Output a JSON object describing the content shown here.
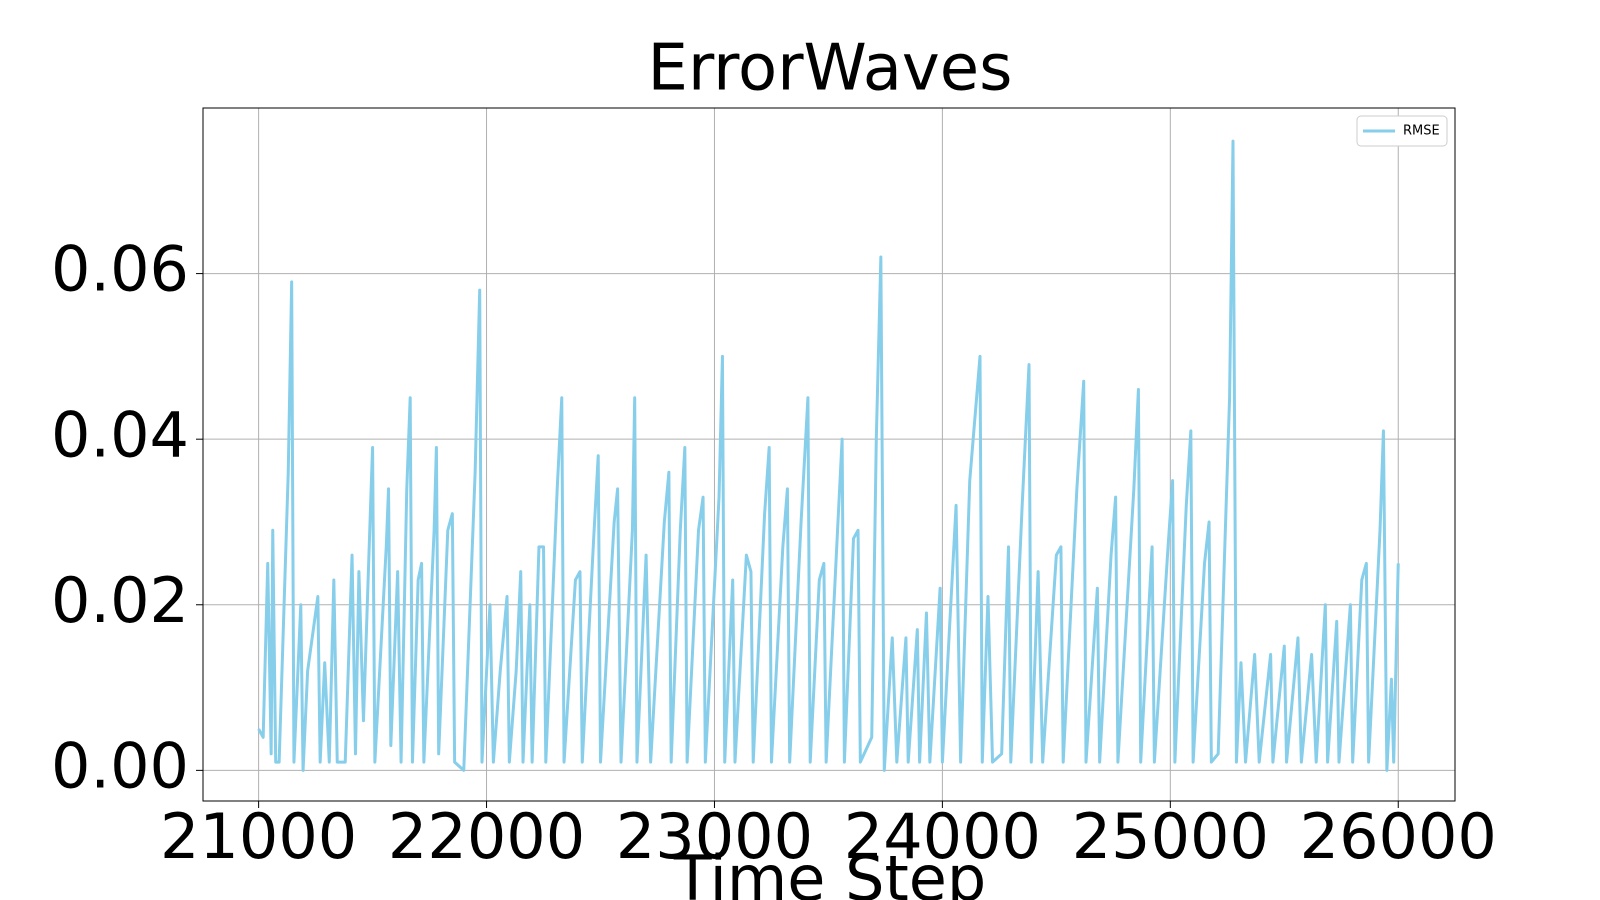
{
  "chart_data": {
    "type": "line",
    "title": "ErrorWaves",
    "x_label": "Time Step",
    "x": [
      21000,
      21020,
      21040,
      21055,
      21062,
      21075,
      21090,
      21130,
      21145,
      21155,
      21185,
      21195,
      21215,
      21260,
      21270,
      21290,
      21310,
      21330,
      21345,
      21380,
      21410,
      21425,
      21440,
      21460,
      21490,
      21500,
      21510,
      21560,
      21570,
      21580,
      21610,
      21625,
      21650,
      21665,
      21675,
      21700,
      21715,
      21725,
      21770,
      21780,
      21790,
      21830,
      21850,
      21860,
      21900,
      21950,
      21970,
      21980,
      22015,
      22030,
      22060,
      22090,
      22100,
      22130,
      22150,
      22160,
      22190,
      22200,
      22230,
      22250,
      22260,
      22310,
      22330,
      22340,
      22390,
      22410,
      22420,
      22470,
      22490,
      22500,
      22560,
      22575,
      22590,
      22640,
      22650,
      22660,
      22700,
      22720,
      22780,
      22800,
      22810,
      22850,
      22870,
      22880,
      22930,
      22950,
      22960,
      23020,
      23035,
      23045,
      23080,
      23090,
      23140,
      23160,
      23170,
      23220,
      23240,
      23250,
      23300,
      23320,
      23330,
      23380,
      23410,
      23420,
      23460,
      23480,
      23490,
      23540,
      23560,
      23570,
      23610,
      23630,
      23640,
      23690,
      23710,
      23730,
      23745,
      23780,
      23800,
      23840,
      23850,
      23890,
      23900,
      23930,
      23945,
      23990,
      24000,
      24060,
      24080,
      24120,
      24165,
      24175,
      24200,
      24220,
      24260,
      24290,
      24300,
      24350,
      24380,
      24390,
      24420,
      24440,
      24500,
      24520,
      24530,
      24590,
      24620,
      24630,
      24680,
      24690,
      24740,
      24760,
      24770,
      24840,
      24860,
      24870,
      24920,
      24930,
      24990,
      25010,
      25020,
      25070,
      25090,
      25100,
      25150,
      25170,
      25180,
      25210,
      25260,
      25275,
      25290,
      25310,
      25330,
      25370,
      25390,
      25440,
      25450,
      25500,
      25510,
      25560,
      25575,
      25620,
      25640,
      25680,
      25690,
      25730,
      25740,
      25790,
      25800,
      25840,
      25860,
      25870,
      25920,
      25935,
      25950,
      25970,
      25980,
      26000
    ],
    "series": [
      {
        "name": "RMSE",
        "color": "#87ceeb",
        "values": [
          0.005,
          0.004,
          0.025,
          0.002,
          0.029,
          0.001,
          0.001,
          0.036,
          0.059,
          0.001,
          0.02,
          0.0,
          0.012,
          0.021,
          0.001,
          0.013,
          0.001,
          0.023,
          0.001,
          0.001,
          0.026,
          0.002,
          0.024,
          0.006,
          0.031,
          0.039,
          0.001,
          0.027,
          0.034,
          0.003,
          0.024,
          0.001,
          0.034,
          0.045,
          0.001,
          0.023,
          0.025,
          0.001,
          0.029,
          0.039,
          0.002,
          0.029,
          0.031,
          0.001,
          0.0,
          0.036,
          0.058,
          0.001,
          0.02,
          0.001,
          0.012,
          0.021,
          0.001,
          0.012,
          0.024,
          0.001,
          0.02,
          0.001,
          0.027,
          0.027,
          0.001,
          0.034,
          0.045,
          0.001,
          0.023,
          0.024,
          0.001,
          0.028,
          0.038,
          0.001,
          0.03,
          0.034,
          0.001,
          0.029,
          0.045,
          0.001,
          0.026,
          0.001,
          0.03,
          0.036,
          0.001,
          0.029,
          0.039,
          0.001,
          0.029,
          0.033,
          0.001,
          0.033,
          0.05,
          0.001,
          0.023,
          0.001,
          0.026,
          0.024,
          0.001,
          0.031,
          0.039,
          0.001,
          0.027,
          0.034,
          0.001,
          0.03,
          0.045,
          0.001,
          0.023,
          0.025,
          0.001,
          0.029,
          0.04,
          0.001,
          0.028,
          0.029,
          0.001,
          0.004,
          0.04,
          0.062,
          0.0,
          0.016,
          0.001,
          0.016,
          0.001,
          0.017,
          0.001,
          0.019,
          0.001,
          0.022,
          0.001,
          0.032,
          0.001,
          0.035,
          0.05,
          0.001,
          0.021,
          0.001,
          0.002,
          0.027,
          0.001,
          0.032,
          0.049,
          0.001,
          0.024,
          0.001,
          0.026,
          0.027,
          0.001,
          0.034,
          0.047,
          0.001,
          0.022,
          0.001,
          0.026,
          0.033,
          0.001,
          0.034,
          0.046,
          0.001,
          0.027,
          0.001,
          0.027,
          0.035,
          0.001,
          0.032,
          0.041,
          0.001,
          0.025,
          0.03,
          0.001,
          0.002,
          0.045,
          0.076,
          0.001,
          0.013,
          0.001,
          0.014,
          0.001,
          0.014,
          0.001,
          0.015,
          0.001,
          0.016,
          0.001,
          0.014,
          0.001,
          0.02,
          0.001,
          0.018,
          0.001,
          0.02,
          0.001,
          0.023,
          0.025,
          0.001,
          0.029,
          0.041,
          0.0,
          0.011,
          0.001,
          0.025
        ]
      }
    ],
    "xlim": [
      20756,
      26249
    ],
    "ylim": [
      -0.0037,
      0.08
    ],
    "xticks": [
      21000,
      22000,
      23000,
      24000,
      25000,
      26000
    ],
    "yticks": [
      {
        "value": 0,
        "label": "0.00"
      },
      0.02,
      0.04,
      0.06
    ],
    "grid": true,
    "legend": "upper right"
  }
}
